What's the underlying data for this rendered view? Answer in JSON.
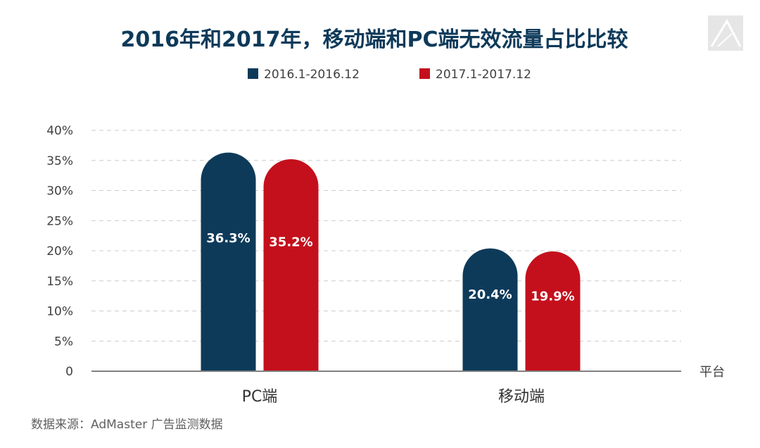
{
  "chart_data": {
    "type": "bar",
    "title": "2016年和2017年，移动端和PC端无效流量占比比较",
    "categories": [
      "PC端",
      "移动端"
    ],
    "series": [
      {
        "name": "2016.1-2016.12",
        "values": [
          36.3,
          20.4
        ],
        "labels": [
          "36.3%",
          "20.4%"
        ],
        "color": "#0e3a5a"
      },
      {
        "name": "2017.1-2017.12",
        "values": [
          35.2,
          19.9
        ],
        "labels": [
          "35.2%",
          "19.9%"
        ],
        "color": "#c4101c"
      }
    ],
    "xlabel": "平台",
    "ylabel": "",
    "ylim": [
      0,
      40
    ],
    "yticks": [
      0,
      5,
      10,
      15,
      20,
      25,
      30,
      35,
      40
    ],
    "ytick_labels": [
      "0",
      "5%",
      "10%",
      "15%",
      "20%",
      "25%",
      "30%",
      "35%",
      "40%"
    ],
    "grid": true,
    "legend_position": "top"
  },
  "source_note": "数据来源：AdMaster 广告监测数据",
  "colors": {
    "title": "#0e3a5a",
    "axis": "#808080",
    "grid": "#cccccc",
    "text": "#404040"
  },
  "logo_icon": "triangle-logo-icon"
}
